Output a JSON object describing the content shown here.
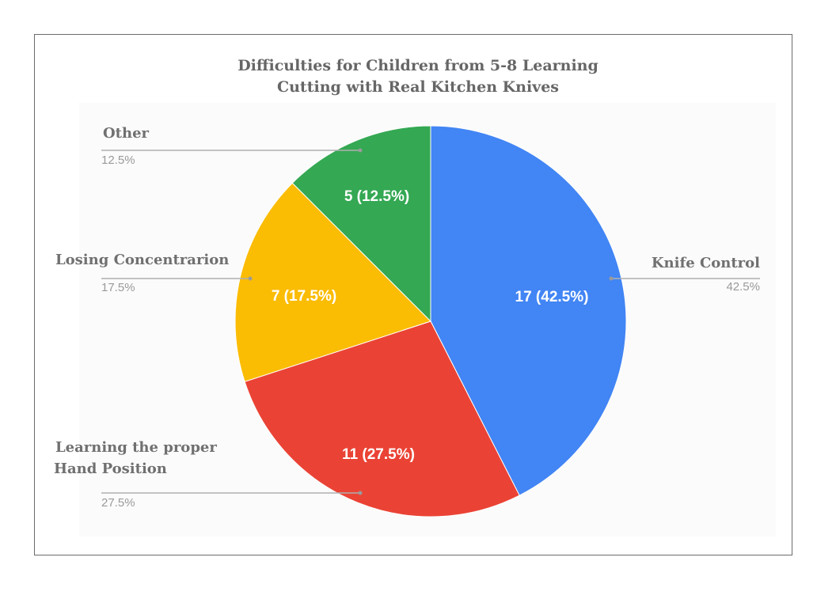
{
  "chart_data": {
    "type": "pie",
    "title_lines": [
      "Difficulties for Children from 5-8 Learning",
      "Cutting with Real Kitchen Knives"
    ],
    "slices": [
      {
        "category": "Knife Control",
        "value": 17,
        "percent": 42.5,
        "slice_label": "17 (42.5%)",
        "legend_pct": "42.5%",
        "color": "#4285f4"
      },
      {
        "category": "Learning the proper Hand Position",
        "category_lines": [
          "Learning  the  proper",
          "Hand Position"
        ],
        "value": 11,
        "percent": 27.5,
        "slice_label": "11 (27.5%)",
        "legend_pct": "27.5%",
        "color": "#ea4335"
      },
      {
        "category": "Losing Concentrarion",
        "value": 7,
        "percent": 17.5,
        "slice_label": "7 (17.5%)",
        "legend_pct": "17.5%",
        "color": "#fbbc04"
      },
      {
        "category": "Other",
        "value": 5,
        "percent": 12.5,
        "slice_label": "5 (12.5%)",
        "legend_pct": "12.5%",
        "color": "#34a853"
      }
    ],
    "start_angle": "12 o'clock",
    "direction": "clockwise",
    "legend": "labeled leader lines"
  }
}
